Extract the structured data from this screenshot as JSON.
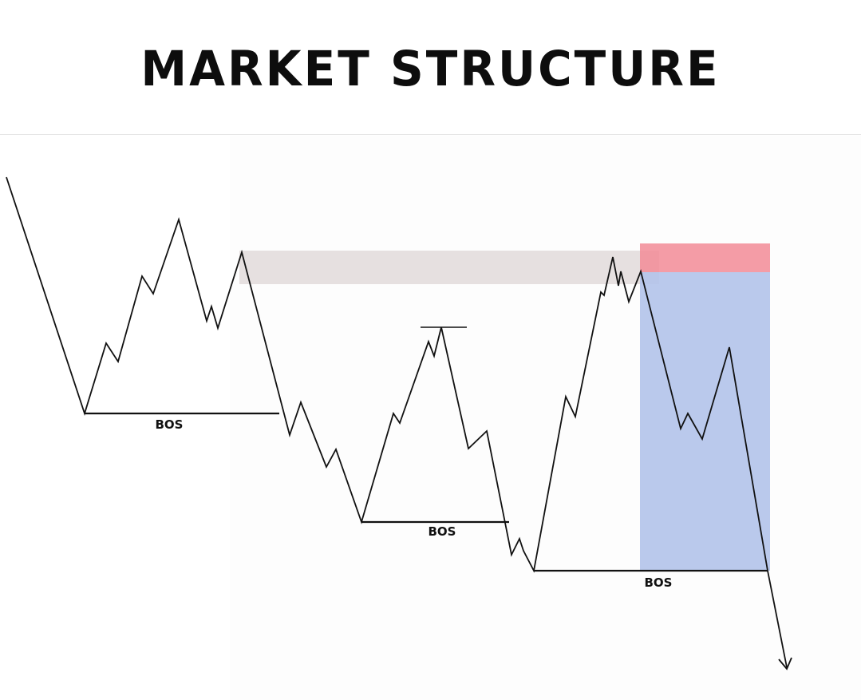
{
  "title": "MARKET STRUCTURE",
  "labels": {
    "bos_1": "BOS",
    "bos_2": "BOS",
    "bos_3": "BOS"
  },
  "colors": {
    "line": "#111111",
    "supply_zone": "#dcd3d3",
    "stop_loss_zone": "#f28b96",
    "take_profit_zone": "#b3c3ea"
  }
}
